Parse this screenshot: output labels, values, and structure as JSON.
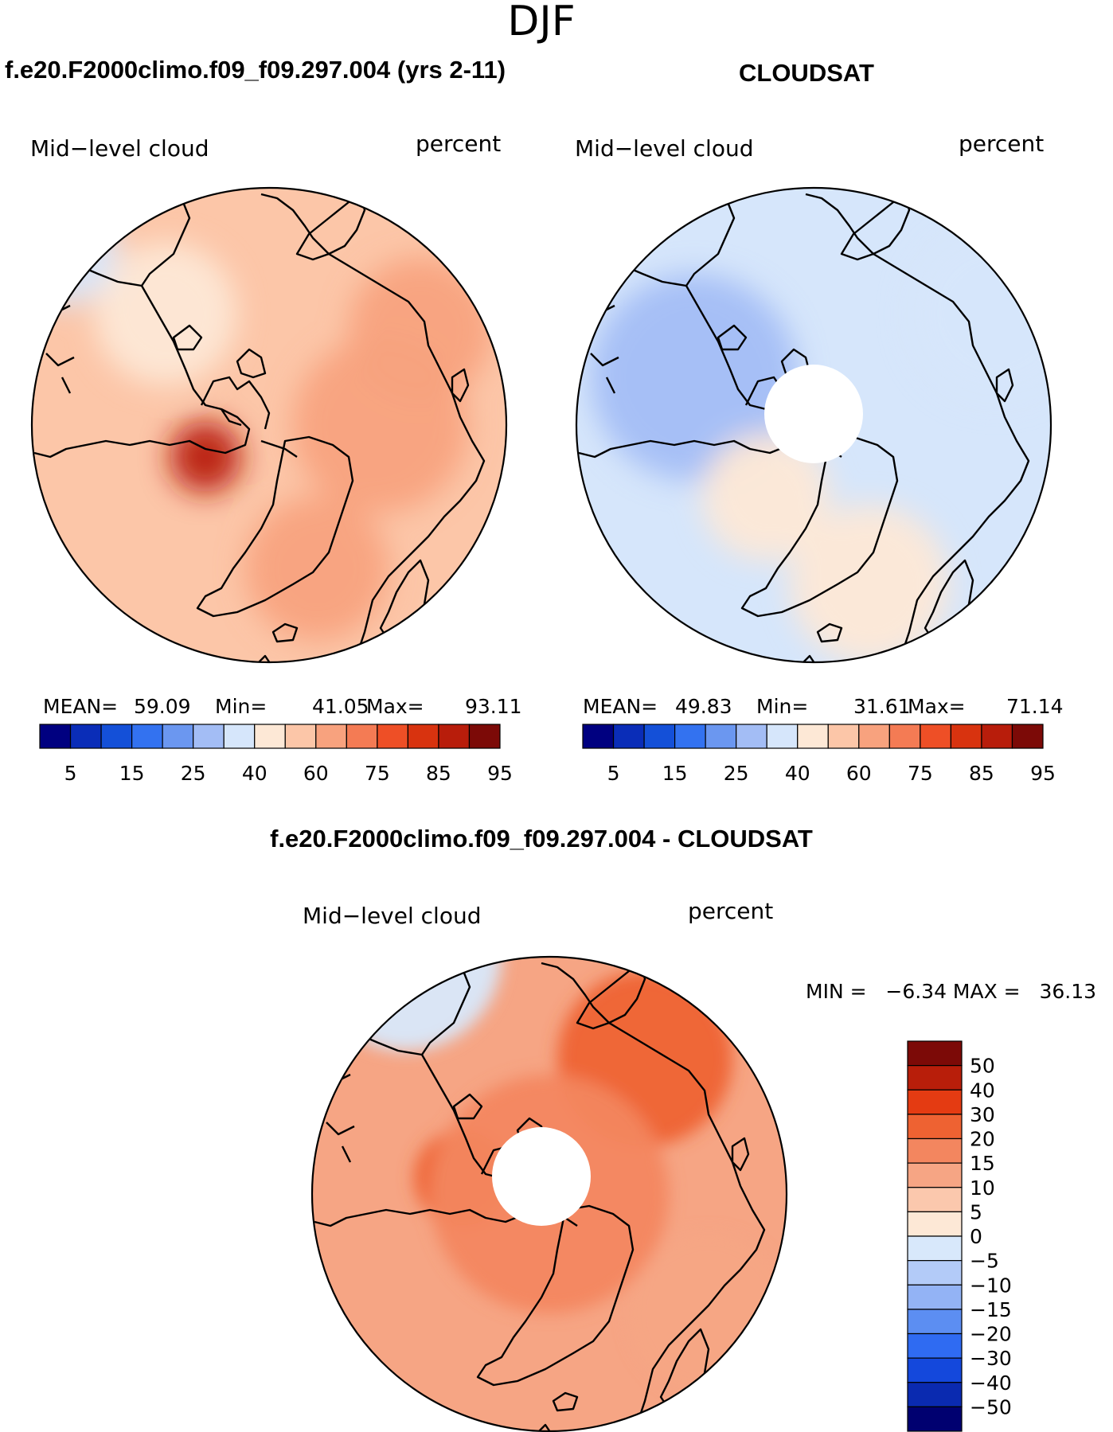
{
  "season": "DJF",
  "panels": [
    {
      "id": "model",
      "case_title": "f.e20.F2000climo.f09_f09.297.004 (yrs 2-11)",
      "variable": "Mid−level cloud",
      "units": "percent",
      "stats": {
        "mean_label": "MEAN=",
        "mean": "59.09",
        "min_label": "Min=",
        "min": "41.05",
        "max_label": "Max=",
        "max": "93.11"
      },
      "field": {
        "base_level": 60,
        "has_polar_hole": false,
        "features": [
          {
            "where": "Greenland interior",
            "level": 93
          },
          {
            "where": "Eastern Siberia",
            "level": 72
          },
          {
            "where": "Western Russia",
            "level": 70
          },
          {
            "where": "North Atlantic / Norway",
            "level": 66
          },
          {
            "where": "Canadian Archipelago / Arctic Ocean near Alaska",
            "level": 50
          },
          {
            "where": "North Pacific edge",
            "level": 48
          }
        ]
      }
    },
    {
      "id": "obs",
      "case_title": "CLOUDSAT",
      "variable": "Mid−level cloud",
      "units": "percent",
      "stats": {
        "mean_label": "MEAN=",
        "mean": "49.83",
        "min_label": "Min=",
        "min": "31.61",
        "max_label": "Max=",
        "max": "71.14"
      },
      "field": {
        "base_level": 48,
        "has_polar_hole": true,
        "features": [
          {
            "where": "Canadian Archipelago",
            "level": 38
          },
          {
            "where": "Southern Greenland",
            "level": 58
          },
          {
            "where": "Eastern Siberia / Pacific",
            "level": 44
          },
          {
            "where": "Europe / Scandinavia",
            "level": 57
          }
        ]
      }
    },
    {
      "id": "diff",
      "case_title": "f.e20.F2000climo.f09_f09.297.004 - CLOUDSAT",
      "variable": "Mid−level cloud",
      "units": "percent",
      "stats_text": "MIN =   −6.34 MAX =   36.13",
      "field": {
        "base_level": 12,
        "has_polar_hole": true,
        "features": [
          {
            "where": "Greenland",
            "level": 25
          },
          {
            "where": "Eastern Siberia",
            "level": 22
          },
          {
            "where": "Arctic ring",
            "level": 18
          },
          {
            "where": "Pacific edge",
            "level": -3
          },
          {
            "where": "Europe",
            "level": 10
          }
        ]
      }
    }
  ],
  "abs_colorbar": {
    "colors": [
      "#000080",
      "#0a2db8",
      "#1450d8",
      "#3372f0",
      "#6b97f0",
      "#a3bdf5",
      "#d6e6fb",
      "#fde8d6",
      "#fcc6a8",
      "#f8a27e",
      "#f47b54",
      "#ee4f26",
      "#d8330f",
      "#b81d0b",
      "#7c0a07"
    ],
    "labels": [
      "5",
      "15",
      "25",
      "40",
      "60",
      "75",
      "85",
      "95"
    ],
    "levels": [
      5,
      10,
      15,
      20,
      25,
      30,
      40,
      50,
      60,
      65,
      75,
      80,
      85,
      90,
      95
    ]
  },
  "diff_colorbar": {
    "colors": [
      "#000070",
      "#0a2ab0",
      "#1448dc",
      "#2f6bf2",
      "#5c8ef2",
      "#93b3f5",
      "#b3cbf8",
      "#d8e8fb",
      "#fde8d6",
      "#fbc8ad",
      "#f6a584",
      "#f3865f",
      "#ee6232",
      "#e43b12",
      "#b81e0a",
      "#7c0a07"
    ],
    "labels": [
      "50",
      "40",
      "30",
      "20",
      "15",
      "10",
      "5",
      "0",
      "−5",
      "−10",
      "−15",
      "−20",
      "−30",
      "−40",
      "−50"
    ],
    "levels": [
      -60,
      -50,
      -40,
      -30,
      -20,
      -15,
      -10,
      -5,
      0,
      5,
      10,
      15,
      20,
      30,
      40,
      50
    ]
  }
}
